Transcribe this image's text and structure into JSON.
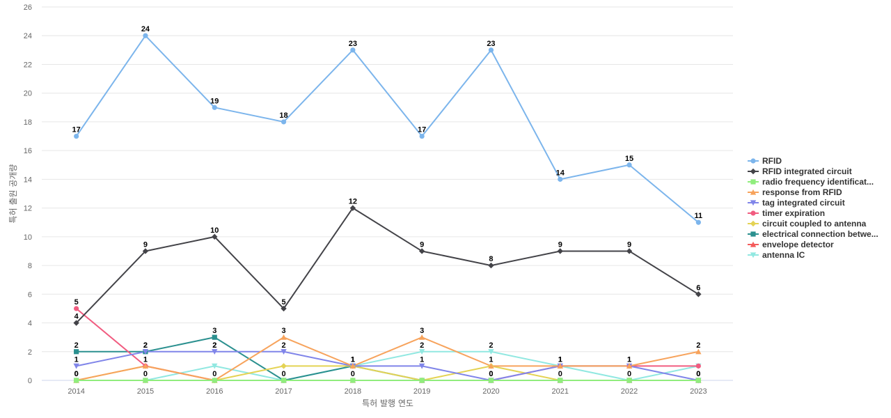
{
  "chart_data": {
    "type": "line",
    "title": "",
    "xlabel": "특허 발행 연도",
    "ylabel": "특허 출원 공개량",
    "ylim": [
      0,
      26
    ],
    "y_ticks": [
      0,
      2,
      4,
      6,
      8,
      10,
      12,
      14,
      16,
      18,
      20,
      22,
      24,
      26
    ],
    "categories": [
      "2014",
      "2015",
      "2016",
      "2017",
      "2018",
      "2019",
      "2020",
      "2021",
      "2022",
      "2023"
    ],
    "grid": true,
    "legend_position": "right",
    "series": [
      {
        "name": "RFID",
        "legend_label": "RFID",
        "color": "#7cb5ec",
        "marker": "circle",
        "values": [
          17,
          24,
          19,
          18,
          23,
          17,
          23,
          14,
          15,
          11
        ],
        "labels": true
      },
      {
        "name": "RFID integrated circuit",
        "legend_label": "RFID integrated circuit",
        "color": "#434348",
        "marker": "diamond",
        "values": [
          4,
          9,
          10,
          5,
          12,
          9,
          8,
          9,
          9,
          6
        ],
        "labels": true
      },
      {
        "name": "radio frequency identification",
        "legend_label": "radio frequency identificat...",
        "color": "#90ed7d",
        "marker": "square",
        "values": [
          0,
          0,
          0,
          0,
          0,
          0,
          0,
          0,
          0,
          0
        ],
        "labels": false
      },
      {
        "name": "response from RFID",
        "legend_label": "response from RFID",
        "color": "#f7a35c",
        "marker": "triangle",
        "values": [
          0,
          1,
          0,
          3,
          1,
          3,
          1,
          1,
          1,
          2
        ],
        "labels": true
      },
      {
        "name": "tag integrated circuit",
        "legend_label": "tag integrated circuit",
        "color": "#8085e9",
        "marker": "triangle-down",
        "values": [
          1,
          2,
          2,
          2,
          1,
          1,
          0,
          1,
          1,
          0
        ],
        "labels": true
      },
      {
        "name": "timer expiration",
        "legend_label": "timer expiration",
        "color": "#f15c80",
        "marker": "circle",
        "values": [
          5,
          1,
          0,
          0,
          0,
          0,
          0,
          1,
          1,
          1
        ],
        "labels": false
      },
      {
        "name": "circuit coupled to antenna",
        "legend_label": "circuit coupled to antenna",
        "color": "#e4d354",
        "marker": "diamond",
        "values": [
          0,
          1,
          0,
          1,
          1,
          0,
          1,
          0,
          0,
          0
        ],
        "labels": false
      },
      {
        "name": "electrical connection between",
        "legend_label": "electrical connection betwe...",
        "color": "#2b908f",
        "marker": "square",
        "values": [
          2,
          2,
          3,
          0,
          1,
          0,
          0,
          0,
          0,
          0
        ],
        "labels": false
      },
      {
        "name": "envelope detector",
        "legend_label": "envelope detector",
        "color": "#f45b5b",
        "marker": "triangle",
        "values": [
          0,
          0,
          0,
          0,
          0,
          0,
          0,
          0,
          0,
          0
        ],
        "labels": false
      },
      {
        "name": "antenna IC",
        "legend_label": "antenna IC",
        "color": "#91e8e1",
        "marker": "triangle-down",
        "values": [
          0,
          0,
          1,
          0,
          1,
          2,
          2,
          1,
          0,
          1
        ],
        "labels": false
      }
    ],
    "annotations": [
      {
        "category": "2014",
        "value": 5,
        "text": "5"
      },
      {
        "category": "2014",
        "value": 2,
        "text": "2"
      },
      {
        "category": "2015",
        "value": 2,
        "text": "2"
      },
      {
        "category": "2016",
        "value": 3,
        "text": "3"
      },
      {
        "category": "2016",
        "value": 2,
        "text": "2"
      },
      {
        "category": "2019",
        "value": 2,
        "text": "2"
      },
      {
        "category": "2020",
        "value": 2,
        "text": "2"
      },
      {
        "category": "2014",
        "value": 0,
        "text": "0"
      },
      {
        "category": "2015",
        "value": 0,
        "text": "0"
      },
      {
        "category": "2017",
        "value": 0,
        "text": "0"
      },
      {
        "category": "2018",
        "value": 0,
        "text": "0"
      },
      {
        "category": "2020",
        "value": 0,
        "text": "0"
      },
      {
        "category": "2021",
        "value": 0,
        "text": "0"
      },
      {
        "category": "2022",
        "value": 0,
        "text": "0"
      },
      {
        "category": "2023",
        "value": 0,
        "text": "0"
      }
    ]
  }
}
